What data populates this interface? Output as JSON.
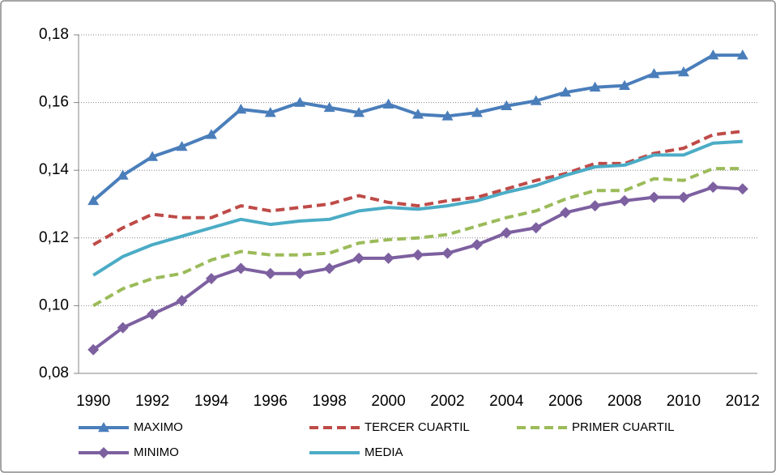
{
  "chart_data": {
    "type": "line",
    "x": [
      1990,
      1991,
      1992,
      1993,
      1994,
      1995,
      1996,
      1997,
      1998,
      1999,
      2000,
      2001,
      2002,
      2003,
      2004,
      2005,
      2006,
      2007,
      2008,
      2009,
      2010,
      2011,
      2012
    ],
    "xlim": [
      1989.5,
      2012.5
    ],
    "xticks": [
      1990,
      1992,
      1994,
      1996,
      1998,
      2000,
      2002,
      2004,
      2006,
      2008,
      2010,
      2012
    ],
    "ylim": [
      0.08,
      0.18
    ],
    "yticks": [
      {
        "value": 0.08,
        "label": "0,08"
      },
      {
        "value": 0.1,
        "label": "0,10"
      },
      {
        "value": 0.12,
        "label": "0,12"
      },
      {
        "value": 0.14,
        "label": "0,14"
      },
      {
        "value": 0.16,
        "label": "0,16"
      },
      {
        "value": 0.18,
        "label": "0,18"
      }
    ],
    "grid": true,
    "legend": "bottom",
    "series": [
      {
        "name": "MAXIMO",
        "color": "#4a7ebb",
        "marker": "triangle",
        "dashed": false,
        "values": [
          0.131,
          0.1385,
          0.144,
          0.147,
          0.1505,
          0.158,
          0.157,
          0.16,
          0.1585,
          0.157,
          0.1595,
          0.1565,
          0.156,
          0.157,
          0.159,
          0.1605,
          0.163,
          0.1645,
          0.165,
          0.1685,
          0.169,
          0.174,
          0.174
        ]
      },
      {
        "name": "TERCER CUARTIL",
        "color": "#be4b48",
        "dashed": true,
        "values": [
          0.118,
          0.123,
          0.127,
          0.126,
          0.126,
          0.1295,
          0.128,
          0.129,
          0.13,
          0.1325,
          0.1305,
          0.1295,
          0.131,
          0.132,
          0.1345,
          0.137,
          0.139,
          0.142,
          0.142,
          0.145,
          0.1465,
          0.1505,
          0.1515
        ]
      },
      {
        "name": "PRIMER CUARTIL",
        "color": "#9bbb59",
        "dashed": true,
        "values": [
          0.1,
          0.105,
          0.108,
          0.1095,
          0.1135,
          0.116,
          0.115,
          0.115,
          0.1155,
          0.1185,
          0.1195,
          0.12,
          0.121,
          0.1235,
          0.126,
          0.128,
          0.1315,
          0.134,
          0.134,
          0.1375,
          0.137,
          0.1405,
          0.1405
        ]
      },
      {
        "name": "MINIMO",
        "color": "#7d60a0",
        "marker": "diamond",
        "dashed": false,
        "values": [
          0.087,
          0.0935,
          0.0975,
          0.1015,
          0.108,
          0.111,
          0.1095,
          0.1095,
          0.111,
          0.114,
          0.114,
          0.115,
          0.1155,
          0.118,
          0.1215,
          0.123,
          0.1275,
          0.1295,
          0.131,
          0.132,
          0.132,
          0.135,
          0.1345
        ]
      },
      {
        "name": "MEDIA",
        "color": "#4bacc6",
        "dashed": false,
        "values": [
          0.109,
          0.1145,
          0.118,
          0.1205,
          0.123,
          0.1255,
          0.124,
          0.125,
          0.1255,
          0.128,
          0.129,
          0.1285,
          0.1295,
          0.131,
          0.1335,
          0.1355,
          0.1385,
          0.141,
          0.1415,
          0.1445,
          0.1445,
          0.148,
          0.1485
        ]
      }
    ]
  }
}
